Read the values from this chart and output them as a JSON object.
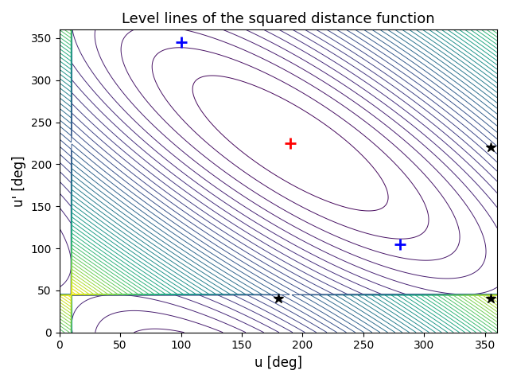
{
  "title": "Level lines of the squared distance function",
  "xlabel": "u [deg]",
  "ylabel": "u' [deg]",
  "xlim": [
    0,
    360
  ],
  "ylim": [
    0,
    360
  ],
  "xticks": [
    0,
    50,
    100,
    150,
    200,
    250,
    300,
    350
  ],
  "yticks": [
    0,
    50,
    100,
    150,
    200,
    250,
    300,
    350
  ],
  "red_plus": [
    190,
    225
  ],
  "blue_plus_1": [
    100,
    345
  ],
  "blue_plus_2": [
    280,
    105
  ],
  "black_star_1": [
    180,
    40
  ],
  "black_star_2": [
    355,
    40
  ],
  "black_star_3": [
    355,
    220
  ],
  "n_levels": 50,
  "colormap": "viridis",
  "figsize": [
    6.4,
    4.8
  ],
  "dpi": 100,
  "metric_a": 1.0,
  "metric_b": 0.8,
  "metric_c": 1.0,
  "u0": 190,
  "up0": 225
}
